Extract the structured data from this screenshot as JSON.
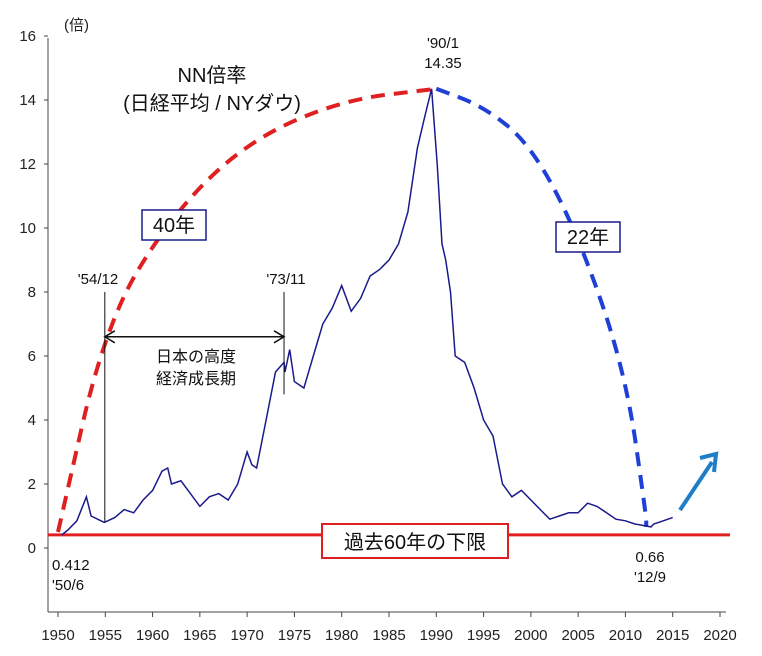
{
  "chart_data": {
    "type": "line",
    "title": "NN倍率",
    "subtitle": "(日経平均 / NYダウ)",
    "ylabel": "(倍)",
    "xlabel": "",
    "xlim": [
      1950,
      2020
    ],
    "ylim": [
      0,
      16
    ],
    "x_ticks": [
      "1950",
      "1955",
      "1960",
      "1965",
      "1970",
      "1975",
      "1980",
      "1985",
      "1990",
      "1995",
      "2000",
      "2005",
      "2010",
      "2015",
      "2020"
    ],
    "y_ticks": [
      "0",
      "2",
      "4",
      "6",
      "8",
      "10",
      "12",
      "14",
      "16"
    ],
    "series": [
      {
        "name": "NN倍率",
        "color": "#1a1a8c",
        "points": [
          [
            1950.4,
            0.41
          ],
          [
            1951,
            0.55
          ],
          [
            1952,
            0.85
          ],
          [
            1953,
            1.6
          ],
          [
            1953.5,
            1.0
          ],
          [
            1954.9,
            0.8
          ],
          [
            1956,
            0.95
          ],
          [
            1957,
            1.2
          ],
          [
            1958,
            1.1
          ],
          [
            1959,
            1.5
          ],
          [
            1960,
            1.8
          ],
          [
            1961,
            2.4
          ],
          [
            1961.6,
            2.5
          ],
          [
            1962,
            2.0
          ],
          [
            1963,
            2.1
          ],
          [
            1964,
            1.7
          ],
          [
            1965,
            1.3
          ],
          [
            1966,
            1.6
          ],
          [
            1967,
            1.7
          ],
          [
            1968,
            1.5
          ],
          [
            1969,
            2.0
          ],
          [
            1970,
            3.0
          ],
          [
            1970.5,
            2.6
          ],
          [
            1971,
            2.5
          ],
          [
            1972,
            4.0
          ],
          [
            1973,
            5.5
          ],
          [
            1973.9,
            5.8
          ],
          [
            1974,
            5.5
          ],
          [
            1974.5,
            6.2
          ],
          [
            1975,
            5.2
          ],
          [
            1976,
            5.0
          ],
          [
            1977,
            6.0
          ],
          [
            1978,
            7.0
          ],
          [
            1979,
            7.5
          ],
          [
            1980,
            8.2
          ],
          [
            1981,
            7.4
          ],
          [
            1982,
            7.8
          ],
          [
            1983,
            8.5
          ],
          [
            1984,
            8.7
          ],
          [
            1985,
            9.0
          ],
          [
            1986,
            9.5
          ],
          [
            1987,
            10.5
          ],
          [
            1988,
            12.5
          ],
          [
            1988.8,
            13.5
          ],
          [
            1989.5,
            14.35
          ],
          [
            1990.1,
            12.0
          ],
          [
            1990.6,
            9.5
          ],
          [
            1991,
            9.0
          ],
          [
            1991.5,
            8.0
          ],
          [
            1992,
            6.0
          ],
          [
            1993,
            5.8
          ],
          [
            1994,
            5.0
          ],
          [
            1995,
            4.0
          ],
          [
            1996,
            3.5
          ],
          [
            1997,
            2.0
          ],
          [
            1998,
            1.6
          ],
          [
            1999,
            1.8
          ],
          [
            2000,
            1.5
          ],
          [
            2001,
            1.2
          ],
          [
            2002,
            0.9
          ],
          [
            2003,
            1.0
          ],
          [
            2004,
            1.1
          ],
          [
            2005,
            1.1
          ],
          [
            2006,
            1.4
          ],
          [
            2007,
            1.3
          ],
          [
            2008,
            1.1
          ],
          [
            2009,
            0.9
          ],
          [
            2010,
            0.85
          ],
          [
            2011,
            0.75
          ],
          [
            2012.7,
            0.66
          ],
          [
            2013,
            0.75
          ],
          [
            2014,
            0.85
          ],
          [
            2015,
            0.95
          ]
        ]
      },
      {
        "name": "40年",
        "style": "dashed",
        "color": "#e02020",
        "points": [
          [
            1950,
            0.5
          ],
          [
            1955,
            7.0
          ],
          [
            1962,
            10.4
          ],
          [
            1970,
            12.7
          ],
          [
            1980,
            14.0
          ],
          [
            1990,
            14.35
          ]
        ]
      },
      {
        "name": "22年",
        "style": "dashed",
        "color": "#1f3fd6",
        "points": [
          [
            1990,
            14.35
          ],
          [
            1995,
            13.8
          ],
          [
            2000,
            12.6
          ],
          [
            2005,
            9.8
          ],
          [
            2010,
            5.5
          ],
          [
            2012.2,
            1.0
          ],
          [
            2012.2,
            0.66
          ]
        ]
      }
    ],
    "reference_lines": [
      {
        "name": "過去60年の下限",
        "y": 0.41,
        "color": "#e02020"
      }
    ],
    "annotations": {
      "peak_date": "'90/1",
      "peak_value": "14.35",
      "low_value": "0.412",
      "low_date": "'50/6",
      "recent_value": "0.66",
      "recent_date": "'12/9",
      "start_period": "'54/12",
      "end_period": "'73/11",
      "period_label_1": "日本の高度",
      "period_label_2": "経済成長期",
      "up_arrow": "上昇トレンド"
    },
    "boxed_labels": {
      "rise_years": "40年",
      "fall_years": "22年",
      "floor_label": "過去60年の下限"
    }
  },
  "colors": {
    "main_line": "#1a1a8c",
    "red": "#e02020",
    "blue": "#1f3fd6",
    "arrow": "#1e7fc8"
  }
}
